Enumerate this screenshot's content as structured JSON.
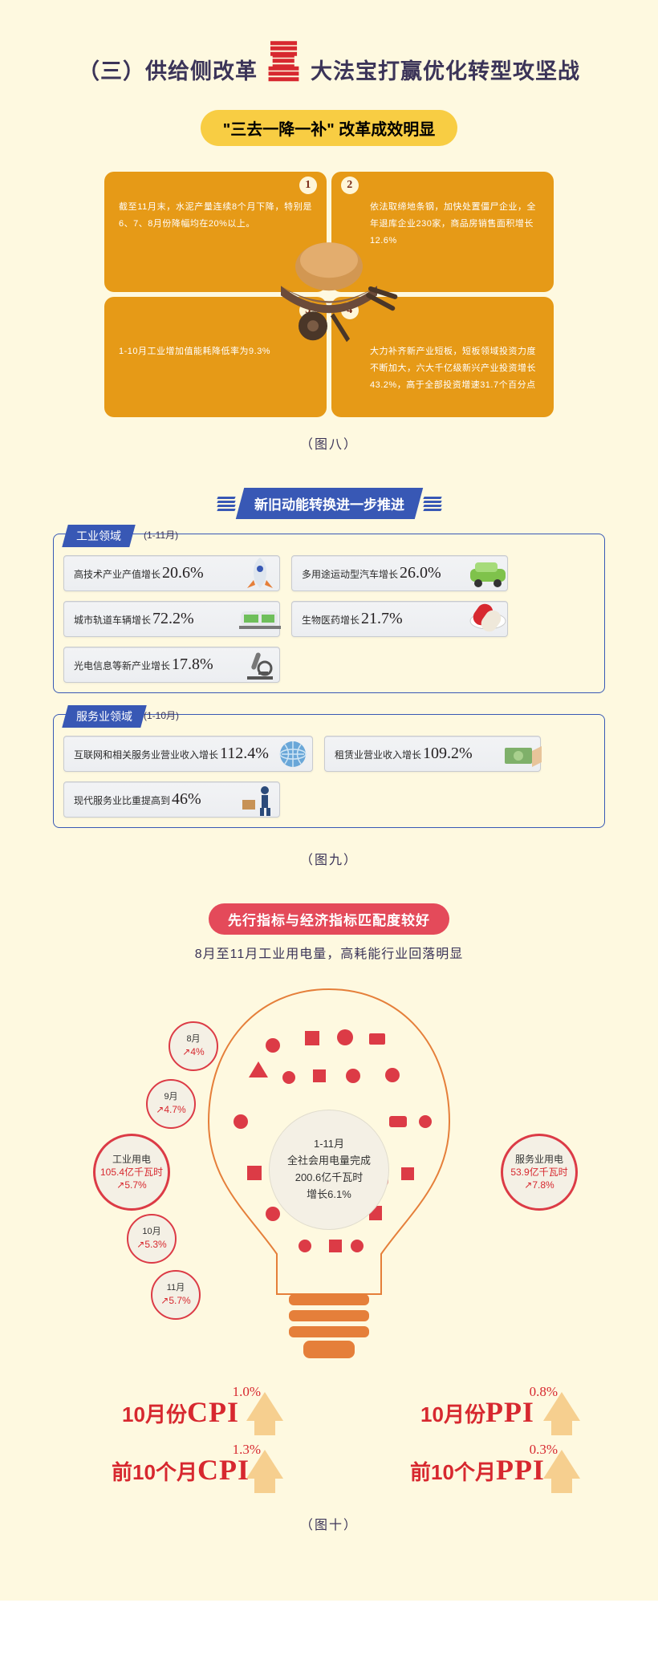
{
  "colors": {
    "bg": "#fef9e0",
    "dark": "#3b3458",
    "red": "#d7282f",
    "orange": "#e69a17",
    "yellow": "#f8cd43",
    "blue": "#3858b5",
    "pink": "#e44a5a",
    "card_bg": "#eceef1",
    "card_border": "#c8cbd0"
  },
  "heading": {
    "prefix": "（三）供给侧改革",
    "san": "三",
    "suffix": "大法宝打赢优化转型攻坚战"
  },
  "section8": {
    "banner": "\"三去一降一补\" 改革成效明显",
    "cells": [
      {
        "n": "1",
        "text": "截至11月末，水泥产量连续8个月下降，特别是6、7、8月份降幅均在20%以上。"
      },
      {
        "n": "2",
        "text": "依法取缔地条钢，加快处置僵尸企业，全年退库企业230家，商品房销售面积增长12.6%"
      },
      {
        "n": "3",
        "text": "1-10月工业增加值能耗降低率为9.3%"
      },
      {
        "n": "4",
        "text": "大力补齐新产业短板，短板领域投资力度不断加大，六大千亿级新兴产业投资增长43.2%，高于全部投资增速31.7个百分点"
      }
    ],
    "caption": "（图八）"
  },
  "section9": {
    "banner": "新旧动能转换进一步推进",
    "domain1": {
      "title": "工业领域",
      "period": "(1-11月)",
      "items": [
        {
          "label": "高技术产业产值增长",
          "value": "20.6%",
          "icon": "rocket"
        },
        {
          "label": "多用途运动型汽车增长",
          "value": "26.0%",
          "icon": "car"
        },
        {
          "label": "城市轨道车辆增长",
          "value": "72.2%",
          "icon": "train"
        },
        {
          "label": "生物医药增长",
          "value": "21.7%",
          "icon": "pill"
        },
        {
          "label": "光电信息等新产业增长",
          "value": "17.8%",
          "icon": "microscope"
        }
      ]
    },
    "domain2": {
      "title": "服务业领域",
      "period": "(1-10月)",
      "items": [
        {
          "label": "互联网和相关服务业营业收入增长",
          "value": "112.4%",
          "icon": "globe"
        },
        {
          "label": "租赁业营业收入增长",
          "value": "109.2%",
          "icon": "money"
        },
        {
          "label": "现代服务业比重提高到",
          "value": "46%",
          "icon": "courier"
        }
      ]
    },
    "caption": "（图九）"
  },
  "section10": {
    "banner": "先行指标与经济指标匹配度较好",
    "subtitle": "8月至11月工业用电量，高耗能行业回落明显",
    "core": {
      "line1": "1-11月",
      "line2": "全社会用电量完成",
      "line3": "200.6亿千瓦时",
      "line4": "增长6.1%"
    },
    "left_big": {
      "label": "工业用电",
      "value": "105.4亿千瓦时",
      "delta": "5.7%"
    },
    "right_big": {
      "label": "服务业用电",
      "value": "53.9亿千瓦时",
      "delta": "7.8%"
    },
    "months": [
      {
        "label": "8月",
        "delta": "4%"
      },
      {
        "label": "9月",
        "delta": "4.7%"
      },
      {
        "label": "10月",
        "delta": "5.3%"
      },
      {
        "label": "11月",
        "delta": "5.7%"
      }
    ],
    "cpi": [
      {
        "prefix": "10月份",
        "acr": "CPI",
        "pct": "1.0%"
      },
      {
        "prefix": "10月份",
        "acr": "PPI",
        "pct": "0.8%"
      },
      {
        "prefix": "前10个月",
        "acr": "CPI",
        "pct": "1.3%"
      },
      {
        "prefix": "前10个月",
        "acr": "PPI",
        "pct": "0.3%"
      }
    ],
    "caption": "（图十）"
  }
}
